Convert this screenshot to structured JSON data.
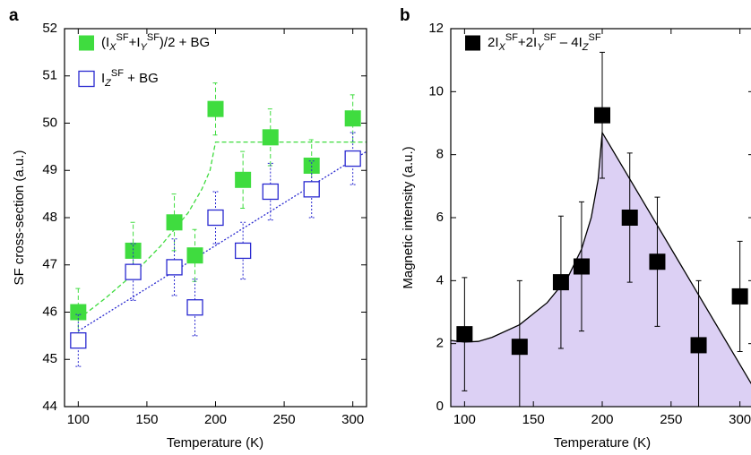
{
  "chart_data": [
    {
      "type": "scatter",
      "panel_label": "a",
      "x_label": "Temperature (K)",
      "y_label": "SF cross-section (a.u.)",
      "xlim": [
        90,
        310
      ],
      "xticks": [
        100,
        150,
        200,
        250,
        300
      ],
      "ylim": [
        44,
        52
      ],
      "yticks": [
        44,
        45,
        46,
        47,
        48,
        49,
        50,
        51,
        52
      ],
      "legend": "upper left",
      "series": [
        {
          "name": "(IXSF+IYSF)/2 + BG",
          "color": "#3fdc3f",
          "text_color": "#4fc84f",
          "marker": "filled",
          "error_style": "dashed",
          "x": [
            100,
            140,
            170,
            185,
            200,
            220,
            240,
            270,
            300
          ],
          "values": [
            46.0,
            47.3,
            47.9,
            47.2,
            50.3,
            48.8,
            49.7,
            49.1,
            50.1
          ],
          "errors": [
            0.5,
            0.6,
            0.6,
            0.55,
            0.55,
            0.6,
            0.6,
            0.55,
            0.5
          ]
        },
        {
          "name": "IZSF + BG",
          "color": "#2a2ad0",
          "text_color": "#1f78c8",
          "marker": "hollow",
          "error_style": "dotted",
          "x": [
            100,
            140,
            170,
            185,
            200,
            220,
            240,
            270,
            300
          ],
          "values": [
            45.4,
            46.85,
            46.95,
            46.1,
            48.0,
            47.3,
            48.55,
            48.6,
            49.25
          ],
          "errors": [
            0.55,
            0.6,
            0.6,
            0.6,
            0.55,
            0.6,
            0.6,
            0.6,
            0.55
          ]
        }
      ],
      "fits": [
        {
          "color": "#3fdc3f",
          "style": "dashed",
          "x": [
            100,
            120,
            140,
            160,
            180,
            190,
            196,
            200,
            250,
            310
          ],
          "values": [
            45.85,
            46.3,
            46.8,
            47.4,
            48.1,
            48.6,
            49.0,
            49.6,
            49.6,
            49.6
          ]
        },
        {
          "color": "#2a2ad0",
          "style": "dotted",
          "x": [
            100,
            310
          ],
          "values": [
            45.6,
            49.4
          ]
        }
      ]
    },
    {
      "type": "scatter",
      "panel_label": "b",
      "x_label": "Temperature (K)",
      "y_label": "Magnetic intensity (a.u.)",
      "xlim": [
        90,
        310
      ],
      "xticks": [
        100,
        150,
        200,
        250,
        300
      ],
      "ylim": [
        0,
        12
      ],
      "yticks": [
        0,
        2,
        4,
        6,
        8,
        10,
        12
      ],
      "legend": "upper left",
      "series": [
        {
          "name": "2IXSF+2IYSF – 4IZSF",
          "color": "#000000",
          "text_color": "#000000",
          "marker": "filled",
          "error_style": "solid",
          "x": [
            100,
            140,
            170,
            185,
            200,
            220,
            240,
            270,
            300
          ],
          "values": [
            2.3,
            1.9,
            3.95,
            4.45,
            9.25,
            6.0,
            4.6,
            1.95,
            3.5
          ],
          "errors": [
            1.8,
            2.1,
            2.1,
            2.05,
            2.0,
            2.05,
            2.05,
            2.05,
            1.75
          ]
        }
      ],
      "fits": [
        {
          "color": "#000000",
          "style": "solid",
          "fill": "#dcd0f4",
          "x": [
            90,
            100,
            110,
            120,
            140,
            160,
            175,
            185,
            192,
            197,
            200,
            310
          ],
          "values": [
            2.1,
            2.05,
            2.07,
            2.2,
            2.6,
            3.3,
            4.1,
            5.0,
            6.0,
            7.2,
            8.7,
            0.6
          ]
        }
      ]
    }
  ]
}
